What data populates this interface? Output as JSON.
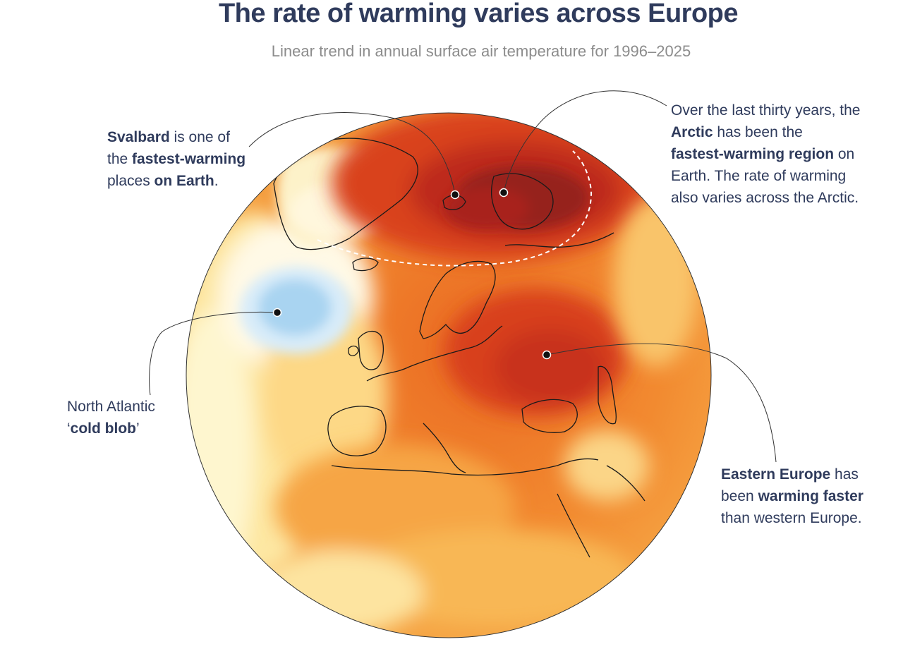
{
  "header": {
    "title": "The rate of warming varies across Europe",
    "subtitle": "Linear trend in annual surface air temperature for 1996–2025"
  },
  "annotations": {
    "svalbard": {
      "b1": "Svalbard",
      "t1": " is one of",
      "t2": "the ",
      "b2": "fastest-warming",
      "t3": "places ",
      "b3": "on Earth",
      "t4": "."
    },
    "arctic": {
      "t1": "Over the last thirty years, the",
      "b1": "Arctic",
      "t2": " has been the",
      "b2": "fastest-warming region",
      "t3": " on",
      "t4": "Earth. The rate of warming",
      "t5": "also varies across the Arctic."
    },
    "cold_blob": {
      "t1": "North Atlantic",
      "q1": "‘",
      "b1": "cold blob",
      "q2": "’"
    },
    "eastern_europe": {
      "b1": "Eastern Europe",
      "t1": " has",
      "t2": "been ",
      "b2": "warming faster",
      "t3": "than western Europe."
    }
  },
  "colors": {
    "text": "#2f3b5c",
    "subtitle": "#8c8c8c",
    "darkest_warming": "#8e1b1b",
    "strong_warming": "#c8321f",
    "warm": "#e8601c",
    "moderate": "#f59b3a",
    "mild": "#fcc968",
    "slight": "#feeaa6",
    "neutral": "#fffbe9",
    "cooling": "#c9e4f7",
    "cooling_strong": "#9fcdef"
  }
}
